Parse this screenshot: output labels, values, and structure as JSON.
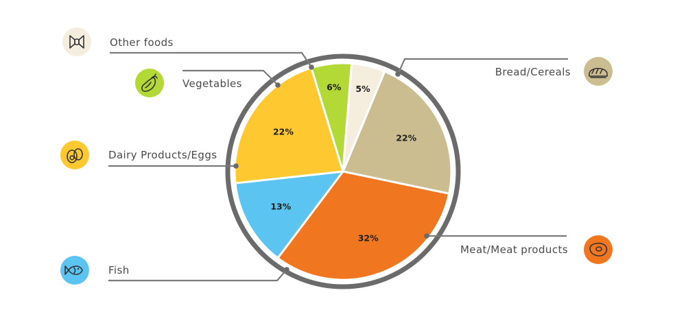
{
  "chart_data": {
    "type": "pie",
    "title": "",
    "categories": [
      "Bread/Cereals",
      "Meat/Meat products",
      "Fish",
      "Dairy Products/Eggs",
      "Vegetables",
      "Other foods"
    ],
    "values": [
      22,
      32,
      13,
      22,
      6,
      5
    ],
    "value_labels": [
      "22%",
      "32%",
      "13%",
      "22%",
      "6%",
      "5%"
    ],
    "legend": "callouts-with-icons",
    "slices": [
      {
        "name": "Bread/Cereals",
        "value": 22,
        "label": "22%",
        "color": "#ccbd91",
        "icon_bg": "#ccbd91",
        "icon": "bread-icon"
      },
      {
        "name": "Meat/Meat products",
        "value": 32,
        "label": "32%",
        "color": "#f07620",
        "icon_bg": "#f07620",
        "icon": "steak-icon"
      },
      {
        "name": "Fish",
        "value": 13,
        "label": "13%",
        "color": "#5bc4f1",
        "icon_bg": "#5bc4f1",
        "icon": "fish-icon"
      },
      {
        "name": "Dairy Products/Eggs",
        "value": 22,
        "label": "22%",
        "color": "#fec930",
        "icon_bg": "#fec930",
        "icon": "eggs-icon"
      },
      {
        "name": "Vegetables",
        "value": 6,
        "label": "6%",
        "color": "#b2d935",
        "icon_bg": "#b2d935",
        "icon": "eggplant-icon"
      },
      {
        "name": "Other foods",
        "value": 5,
        "label": "5%",
        "color": "#f5eedf",
        "icon_bg": "#f5eedf",
        "icon": "candy-icon"
      }
    ]
  },
  "colors": {
    "outer_ring": "#6b6b6b",
    "leader_line": "#7a7a7a",
    "separator": "#ffffff"
  }
}
